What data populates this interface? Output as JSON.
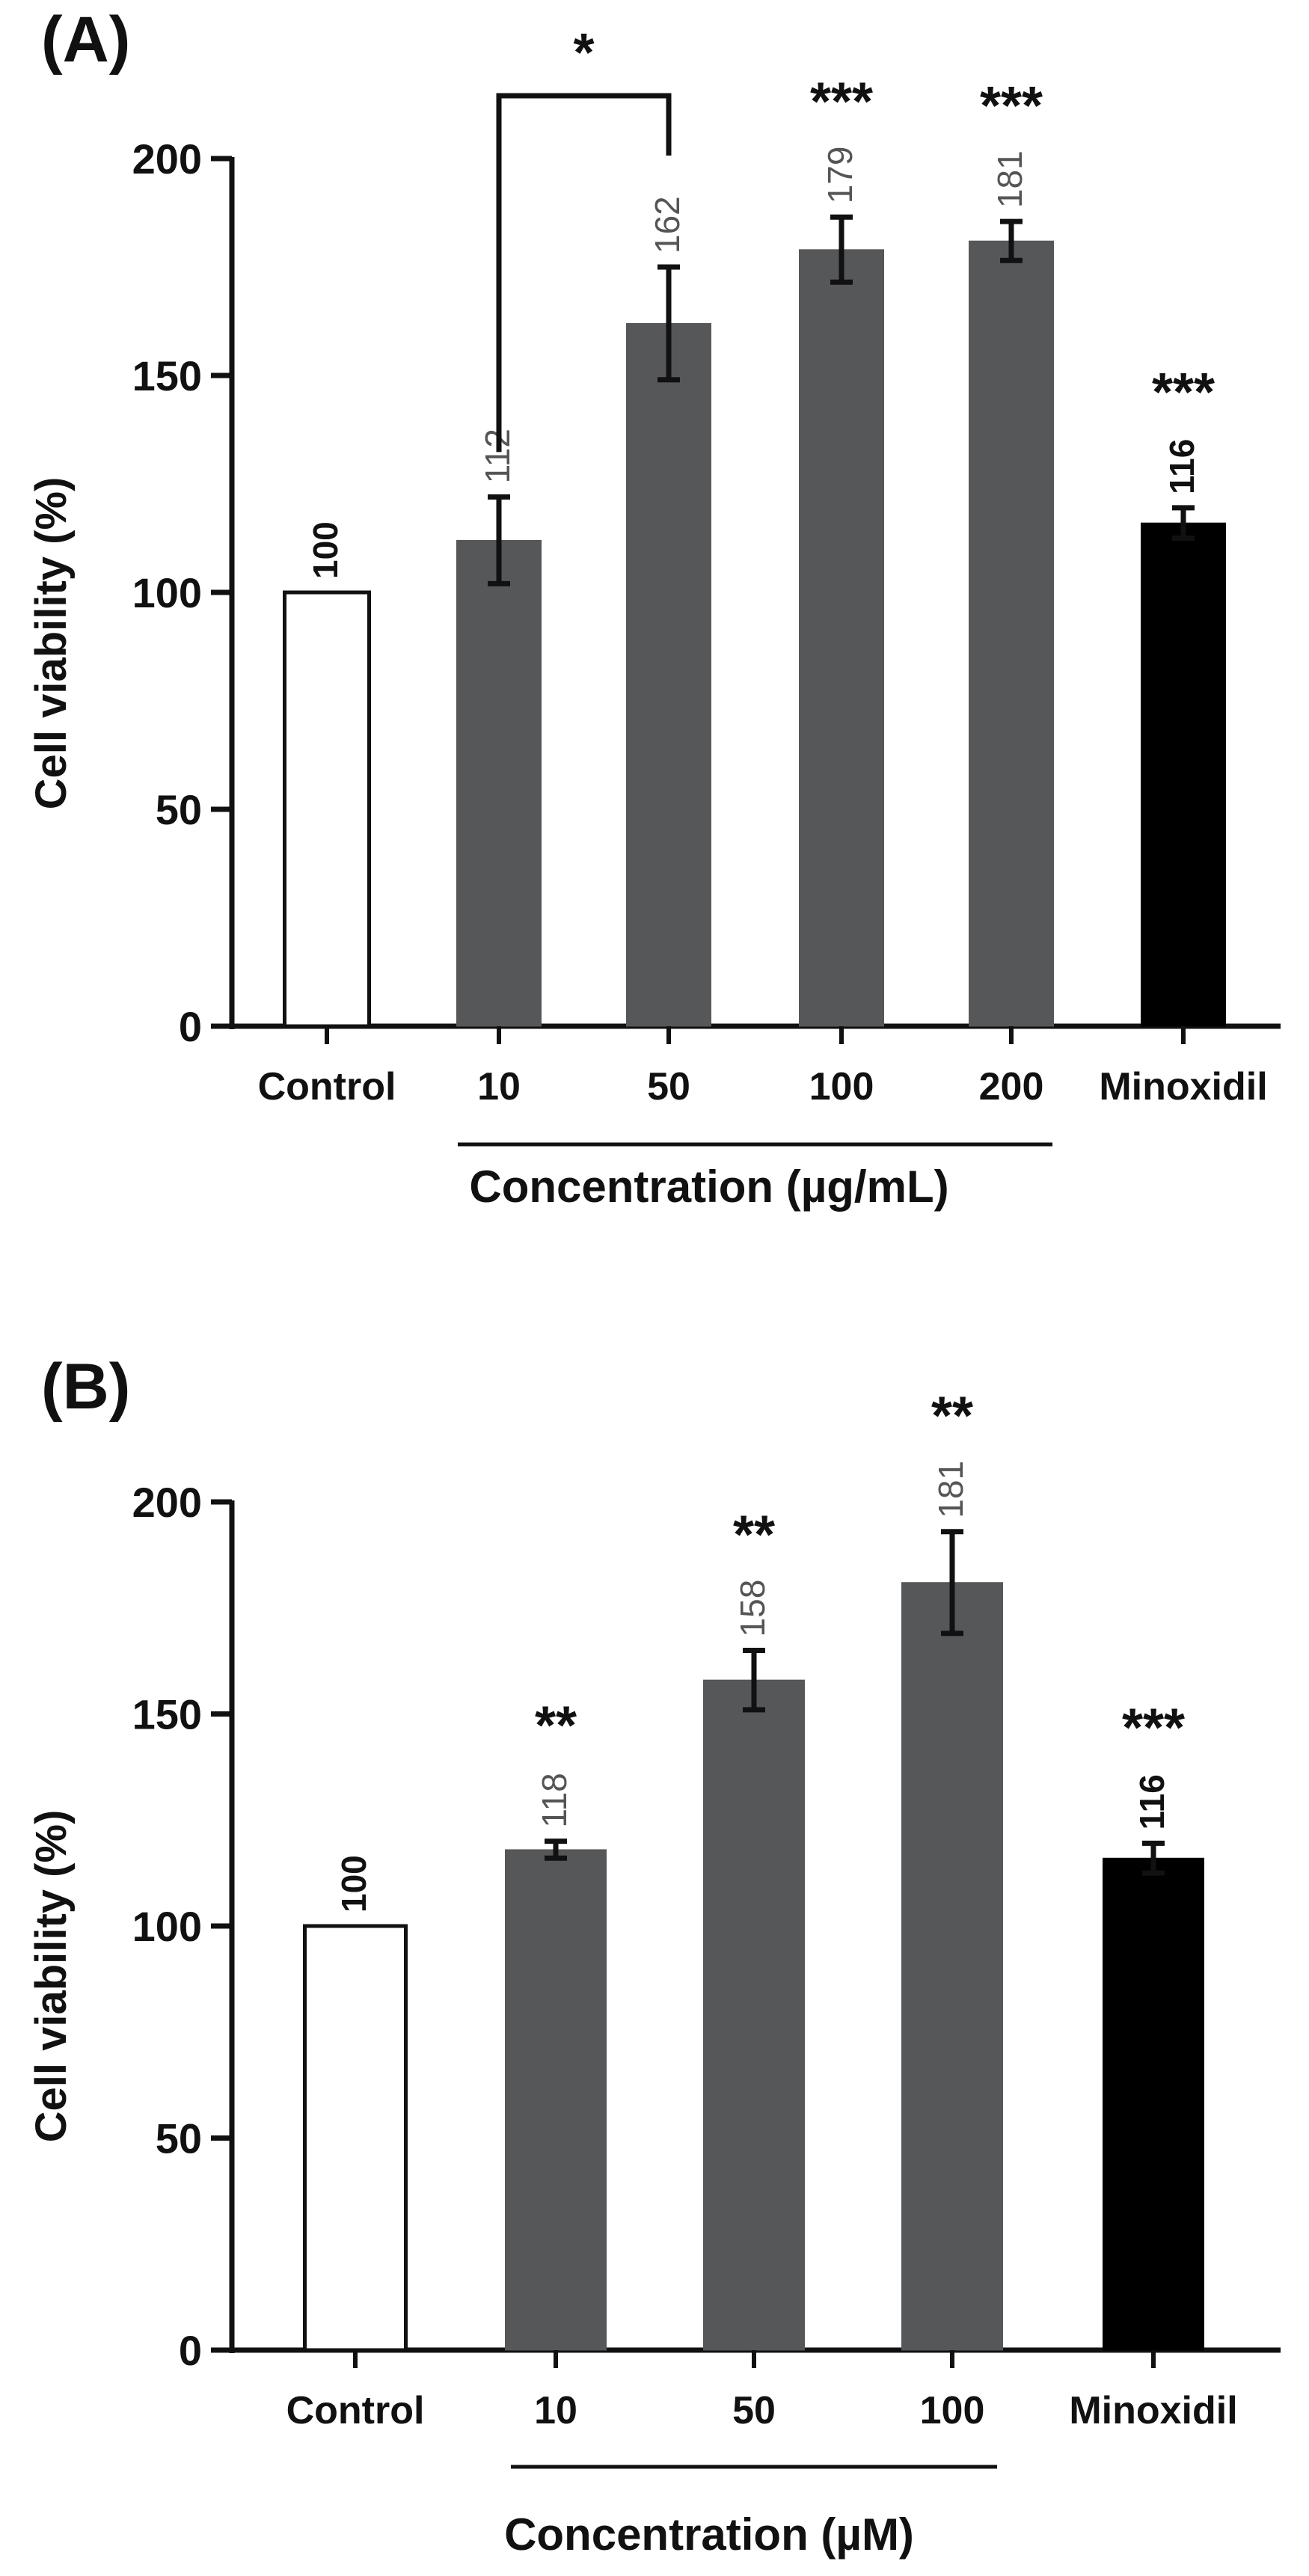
{
  "chart_data": [
    {
      "type": "bar",
      "panel_label": "(A)",
      "ylabel": "Cell viability (%)",
      "xlabel": "Concentration (µg/mL)",
      "ylim": [
        0,
        200
      ],
      "yticks": [
        "0",
        "50",
        "100",
        "150",
        "200"
      ],
      "categories": [
        "Control",
        "10",
        "50",
        "100",
        "200",
        "Minoxidil"
      ],
      "values": [
        100,
        112,
        162,
        179,
        181,
        116
      ],
      "value_labels": [
        "100",
        "112",
        "162",
        "179",
        "181",
        "116"
      ],
      "errors": [
        0,
        10,
        13,
        7.5,
        4.5,
        3.5
      ],
      "significance": [
        "",
        "",
        "",
        "***",
        "***",
        "***"
      ],
      "comparison": {
        "from": "10",
        "to": "50",
        "label": "*"
      },
      "concentration_groups": [
        "10",
        "50",
        "100",
        "200"
      ],
      "colors": [
        "#ffffff",
        "#555759",
        "#555759",
        "#555759",
        "#555759",
        "#000000"
      ],
      "grid": false
    },
    {
      "type": "bar",
      "panel_label": "(B)",
      "ylabel": "Cell viability (%)",
      "xlabel": "Concentration (µM)",
      "ylim": [
        0,
        200
      ],
      "yticks": [
        "0",
        "50",
        "100",
        "150",
        "200"
      ],
      "categories": [
        "Control",
        "10",
        "50",
        "100",
        "Minoxidil"
      ],
      "values": [
        100,
        118,
        158,
        181,
        116
      ],
      "value_labels": [
        "100",
        "118",
        "158",
        "181",
        "116"
      ],
      "errors": [
        0,
        2,
        7,
        12,
        3.5
      ],
      "significance": [
        "",
        "**",
        "**",
        "**",
        "***"
      ],
      "concentration_groups": [
        "10",
        "50",
        "100"
      ],
      "colors": [
        "#ffffff",
        "#555759",
        "#555759",
        "#555759",
        "#000000"
      ],
      "grid": false
    }
  ]
}
